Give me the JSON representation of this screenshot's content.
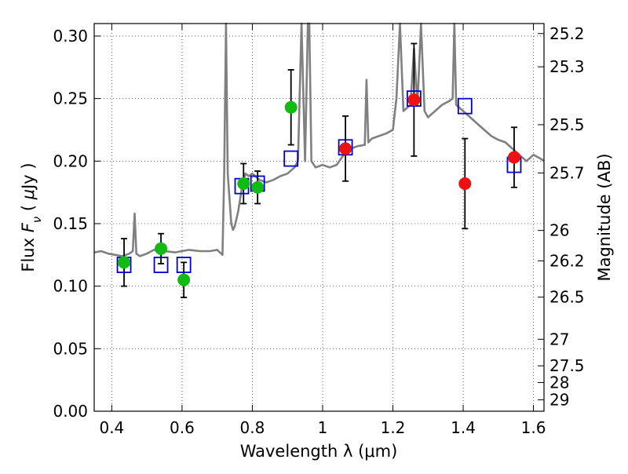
{
  "chart_data": {
    "type": "scatter",
    "xlabel": "Wavelength  λ (μm)",
    "ylabel": "Flux  F_ν  ( μJy )",
    "ylabel2": "Magnitude (AB)",
    "xlim": [
      0.35,
      1.63
    ],
    "ylim": [
      0.0,
      0.31
    ],
    "x_ticks": [
      "0.4",
      "0.6",
      "0.8",
      "1",
      "1.2",
      "1.4",
      "1.6"
    ],
    "y_ticks": [
      "0.00",
      "0.05",
      "0.10",
      "0.15",
      "0.20",
      "0.25",
      "0.30"
    ],
    "mag_ticks": [
      "25.2",
      "25.3",
      "25.5",
      "25.7",
      "26",
      "26.2",
      "26.5",
      "27",
      "27.5",
      "28",
      "29"
    ],
    "grid": true,
    "colors": {
      "spectrum": "#808080",
      "model_box": "#0000cc",
      "optical": "#11bb11",
      "infrared": "#ee1111",
      "errorbar": "#000000"
    },
    "series": [
      {
        "marker": "line",
        "color": "#808080",
        "x": [
          0.35,
          0.37,
          0.39,
          0.41,
          0.43,
          0.45,
          0.46,
          0.465,
          0.47,
          0.48,
          0.5,
          0.52,
          0.55,
          0.58,
          0.6,
          0.62,
          0.65,
          0.68,
          0.7,
          0.715,
          0.72,
          0.725,
          0.73,
          0.74,
          0.745,
          0.75,
          0.76,
          0.77,
          0.78,
          0.79,
          0.8,
          0.82,
          0.84,
          0.86,
          0.88,
          0.9,
          0.92,
          0.93,
          0.94,
          0.95,
          0.958,
          0.962,
          0.968,
          0.98,
          1.0,
          1.02,
          1.04,
          1.06,
          1.08,
          1.1,
          1.12,
          1.125,
          1.13,
          1.14,
          1.16,
          1.18,
          1.2,
          1.21,
          1.22,
          1.23,
          1.25,
          1.26,
          1.27,
          1.28,
          1.29,
          1.3,
          1.32,
          1.34,
          1.36,
          1.37,
          1.375,
          1.38,
          1.4,
          1.42,
          1.44,
          1.46,
          1.48,
          1.5,
          1.52,
          1.54,
          1.56,
          1.58,
          1.6,
          1.62,
          1.63
        ],
        "values": [
          0.127,
          0.128,
          0.126,
          0.125,
          0.124,
          0.126,
          0.128,
          0.158,
          0.126,
          0.124,
          0.126,
          0.129,
          0.128,
          0.127,
          0.128,
          0.129,
          0.128,
          0.128,
          0.129,
          0.125,
          0.19,
          0.31,
          0.19,
          0.15,
          0.145,
          0.148,
          0.16,
          0.178,
          0.19,
          0.188,
          0.19,
          0.185,
          0.183,
          0.185,
          0.188,
          0.19,
          0.195,
          0.2,
          0.31,
          0.2,
          0.31,
          0.31,
          0.2,
          0.195,
          0.197,
          0.195,
          0.197,
          0.205,
          0.21,
          0.212,
          0.213,
          0.265,
          0.215,
          0.218,
          0.22,
          0.222,
          0.225,
          0.25,
          0.31,
          0.24,
          0.245,
          0.29,
          0.245,
          0.31,
          0.24,
          0.235,
          0.24,
          0.245,
          0.248,
          0.25,
          0.31,
          0.245,
          0.24,
          0.235,
          0.23,
          0.225,
          0.22,
          0.217,
          0.215,
          0.21,
          0.205,
          0.2,
          0.205,
          0.202,
          0.2
        ]
      },
      {
        "marker": "open-square",
        "color": "#0000cc",
        "x": [
          0.435,
          0.54,
          0.605,
          0.77,
          0.815,
          0.91,
          1.065,
          1.26,
          1.405,
          1.545
        ],
        "values": [
          0.117,
          0.117,
          0.117,
          0.18,
          0.182,
          0.202,
          0.211,
          0.25,
          0.244,
          0.197
        ]
      },
      {
        "marker": "filled-circle",
        "color": "#11bb11",
        "x": [
          0.435,
          0.54,
          0.605,
          0.775,
          0.815,
          0.91
        ],
        "values": [
          0.119,
          0.13,
          0.105,
          0.182,
          0.179,
          0.243
        ],
        "yerr": [
          0.019,
          0.012,
          0.014,
          0.016,
          0.013,
          0.03
        ]
      },
      {
        "marker": "filled-circle",
        "color": "#ee1111",
        "x": [
          1.065,
          1.26,
          1.405,
          1.545
        ],
        "values": [
          0.21,
          0.249,
          0.182,
          0.203
        ],
        "yerr": [
          0.026,
          0.045,
          0.036,
          0.024
        ]
      }
    ]
  }
}
